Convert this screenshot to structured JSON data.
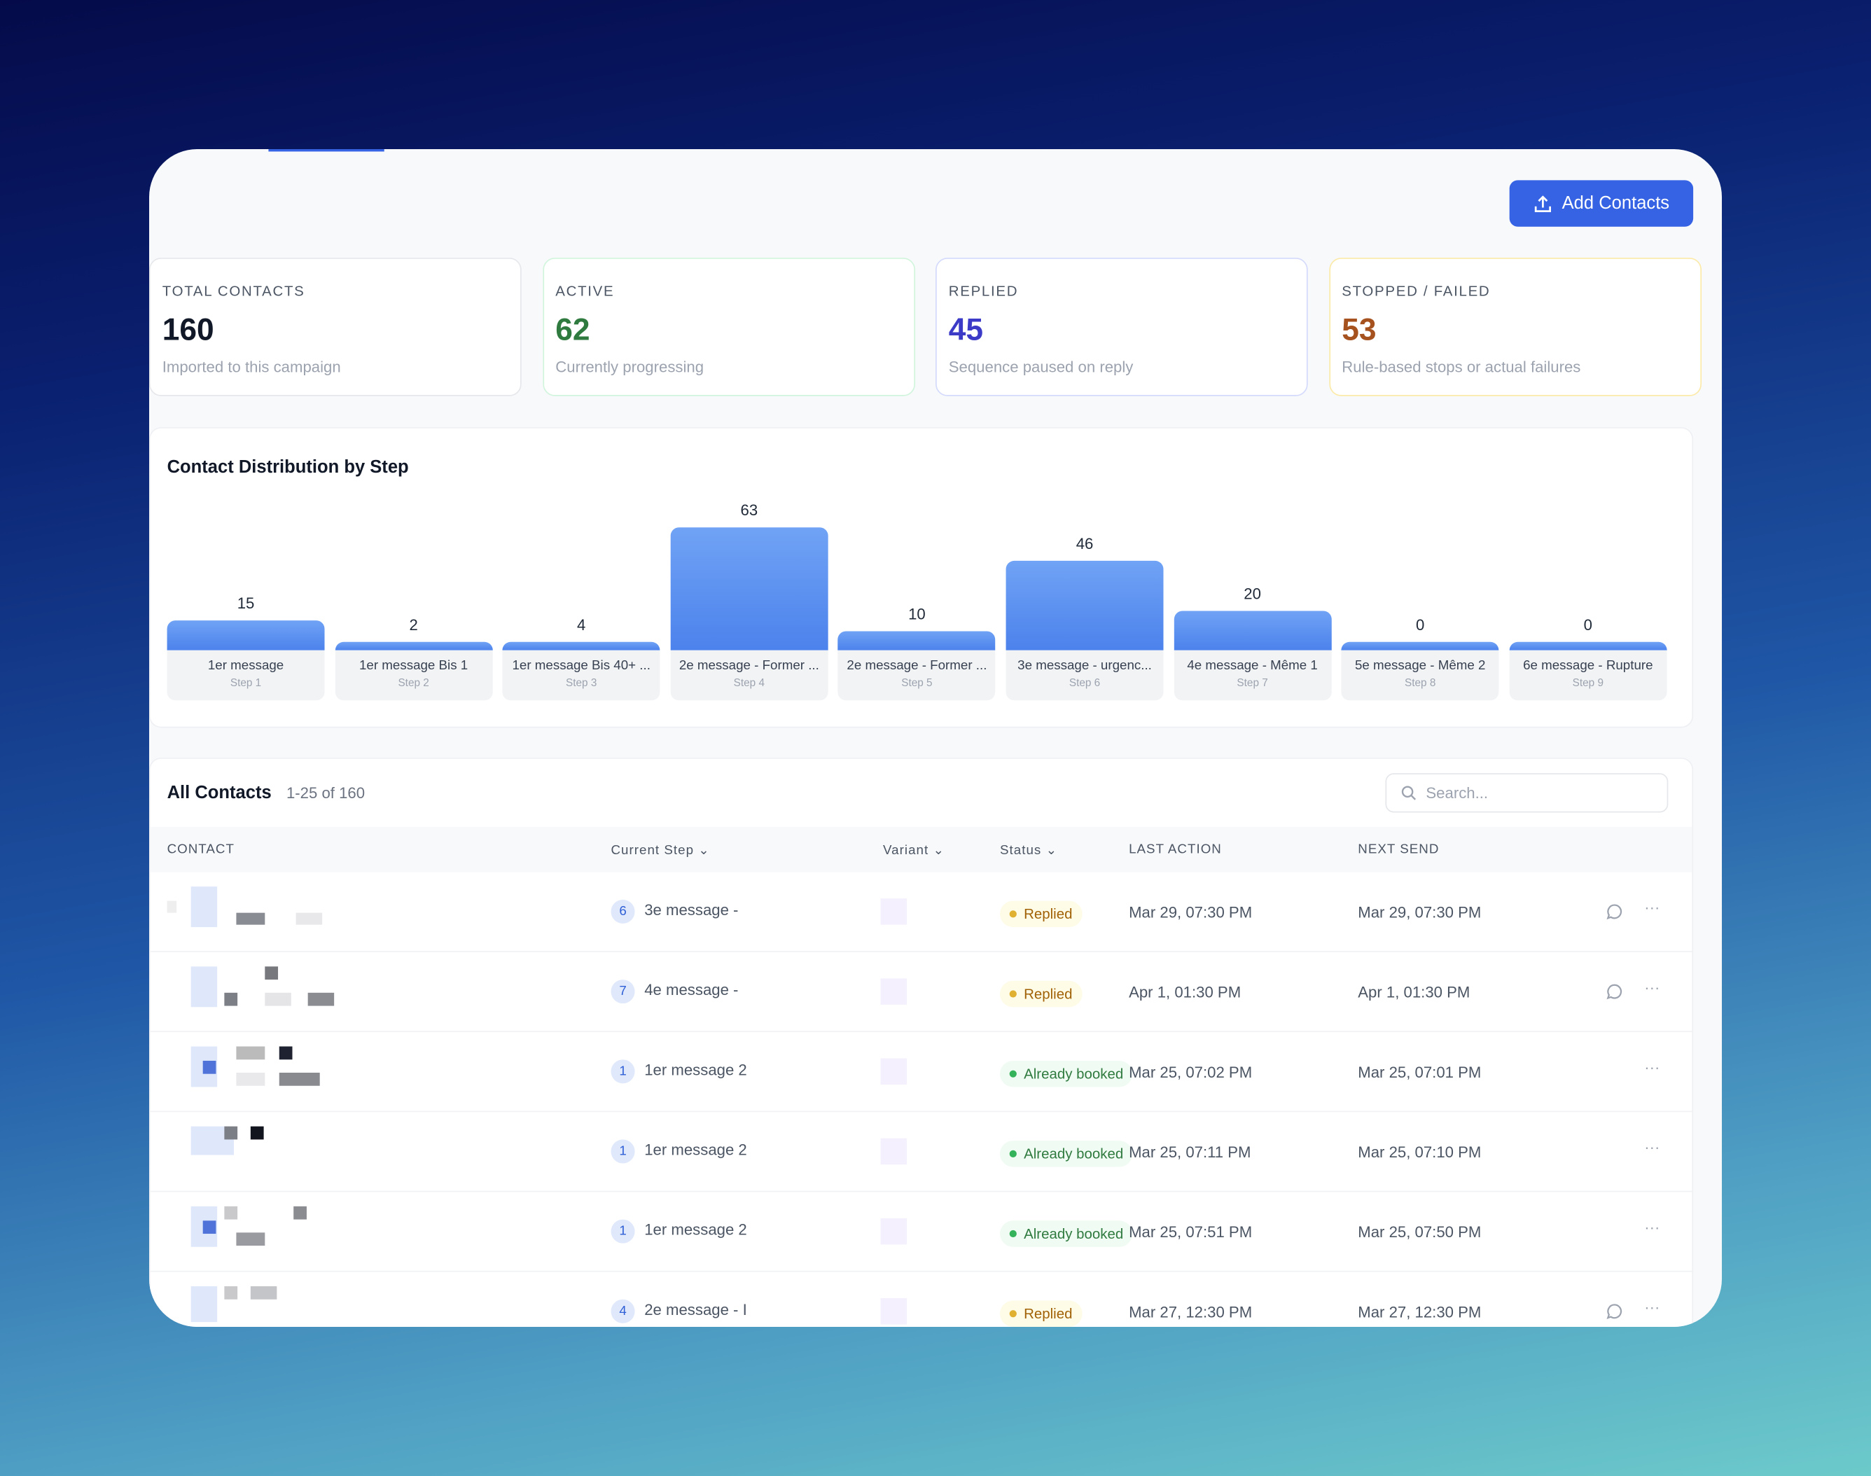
{
  "header": {
    "add_contacts_label": "Add Contacts",
    "add_icon": "upload-icon"
  },
  "stats": [
    {
      "label": "TOTAL CONTACTS",
      "value": "160",
      "sub": "Imported to this campaign",
      "color": "#111827",
      "border": "#e5e7eb"
    },
    {
      "label": "ACTIVE",
      "value": "62",
      "sub": "Currently progressing",
      "color": "#2f7a3f",
      "border": "#d1f5dc"
    },
    {
      "label": "REPLIED",
      "value": "45",
      "sub": "Sequence paused on reply",
      "color": "#3b3bc8",
      "border": "#d4dafc"
    },
    {
      "label": "STOPPED / FAILED",
      "value": "53",
      "sub": "Rule-based stops or actual failures",
      "color": "#a6521f",
      "border": "#fbeaa8"
    }
  ],
  "chart_data": {
    "type": "bar",
    "title": "Contact Distribution by Step",
    "categories": [
      "1er message",
      "1er message Bis 1",
      "1er message Bis 40+ ...",
      "2e message - Former ...",
      "2e message - Former ...",
      "3e message - urgenc...",
      "4e message - Même 1",
      "5e message - Même 2",
      "6e message - Rupture"
    ],
    "steps": [
      "Step 1",
      "Step 2",
      "Step 3",
      "Step 4",
      "Step 5",
      "Step 6",
      "Step 7",
      "Step 8",
      "Step 9"
    ],
    "values": [
      15,
      2,
      4,
      63,
      10,
      46,
      20,
      0,
      0
    ],
    "color": "#5588ee"
  },
  "table": {
    "title": "All Contacts",
    "count": "1-25 of 160",
    "search_placeholder": "Search...",
    "columns": {
      "contact": "CONTACT",
      "step": "Current Step",
      "variant": "Variant",
      "status": "Status",
      "last": "LAST ACTION",
      "next": "NEXT SEND"
    },
    "rows": [
      {
        "step": "6",
        "step_name": "3e message -",
        "status": "Replied",
        "last": "Mar 29, 07:30 PM",
        "next": "Mar 29, 07:30 PM",
        "reply_icon": true
      },
      {
        "step": "7",
        "step_name": "4e message -",
        "status": "Replied",
        "last": "Apr 1, 01:30 PM",
        "next": "Apr 1, 01:30 PM",
        "reply_icon": true
      },
      {
        "step": "1",
        "step_name": "1er message 2",
        "status": "Already booked",
        "last": "Mar 25, 07:02 PM",
        "next": "Mar 25, 07:01 PM",
        "reply_icon": false
      },
      {
        "step": "1",
        "step_name": "1er message 2",
        "status": "Already booked",
        "last": "Mar 25, 07:11 PM",
        "next": "Mar 25, 07:10 PM",
        "reply_icon": false
      },
      {
        "step": "1",
        "step_name": "1er message 2",
        "status": "Already booked",
        "last": "Mar 25, 07:51 PM",
        "next": "Mar 25, 07:50 PM",
        "reply_icon": false
      },
      {
        "step": "4",
        "step_name": "2e message - I",
        "status": "Replied",
        "last": "Mar 27, 12:30 PM",
        "next": "Mar 27, 12:30 PM",
        "reply_icon": true
      }
    ],
    "status_colors": {
      "Replied": {
        "bg": "#fefbe6",
        "fg": "#a16207",
        "dot": "#e0b030"
      },
      "Already booked": {
        "bg": "#f0fbf3",
        "fg": "#2f7a3f",
        "dot": "#34b35a"
      }
    }
  }
}
